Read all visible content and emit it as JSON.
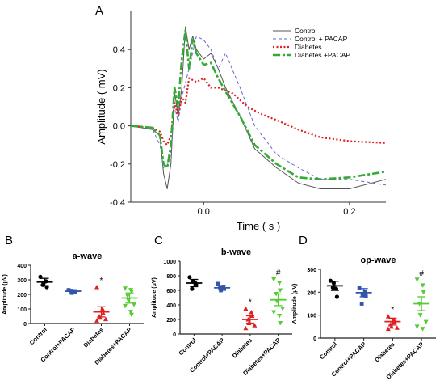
{
  "panel_letters": {
    "a": "A",
    "b": "B",
    "c": "C",
    "d": "D"
  },
  "colors": {
    "control": "#555555",
    "control_pacap": "#6666cc",
    "diabetes": "#e02020",
    "diabetes_pacap": "#33aa33",
    "dot_control": "#000000",
    "dot_control_pacap": "#3355aa",
    "dot_diabetes": "#e02020",
    "dot_diabetes_pacap": "#55cc33"
  },
  "chart_data": [
    {
      "type": "line",
      "xlabel": "Time ( s )",
      "ylabel": "Amplitude ( mV)",
      "xlim": [
        -0.1,
        0.25
      ],
      "ylim": [
        -0.4,
        0.6
      ],
      "xticks": [
        "0.0",
        "0.2"
      ],
      "xtick_values": [
        0.0,
        0.2
      ],
      "yticks": [
        "-0.4",
        "-0.2",
        "0.0",
        "0.2",
        "0.4"
      ],
      "ytick_values": [
        -0.4,
        -0.2,
        0.0,
        0.2,
        0.4
      ],
      "legend_position": "top-right",
      "series": [
        {
          "name": "Control",
          "style": "solid",
          "x": [
            -0.1,
            -0.07,
            -0.06,
            -0.055,
            -0.05,
            -0.045,
            -0.04,
            -0.035,
            -0.03,
            -0.025,
            -0.02,
            -0.015,
            -0.01,
            0.0,
            0.01,
            0.02,
            0.03,
            0.05,
            0.07,
            0.1,
            0.13,
            0.16,
            0.2,
            0.25
          ],
          "y": [
            0.0,
            -0.02,
            -0.05,
            -0.25,
            -0.33,
            -0.2,
            0.18,
            0.05,
            0.2,
            0.52,
            0.4,
            0.47,
            0.4,
            0.35,
            0.38,
            0.3,
            0.2,
            0.05,
            -0.12,
            -0.22,
            -0.3,
            -0.33,
            -0.33,
            -0.28
          ]
        },
        {
          "name": "Control + PACAP",
          "style": "dashed",
          "x": [
            -0.1,
            -0.07,
            -0.06,
            -0.055,
            -0.05,
            -0.045,
            -0.04,
            -0.035,
            -0.03,
            -0.02,
            -0.01,
            0.0,
            0.01,
            0.02,
            0.03,
            0.05,
            0.07,
            0.1,
            0.13,
            0.16,
            0.2,
            0.25
          ],
          "y": [
            0.0,
            -0.02,
            -0.1,
            -0.22,
            -0.2,
            -0.15,
            0.1,
            0.02,
            0.15,
            0.3,
            0.47,
            0.45,
            0.4,
            0.3,
            0.38,
            0.2,
            0.0,
            -0.15,
            -0.22,
            -0.28,
            -0.28,
            -0.31
          ]
        },
        {
          "name": "Diabetes",
          "style": "dotted",
          "x": [
            -0.1,
            -0.07,
            -0.06,
            -0.055,
            -0.05,
            -0.045,
            -0.04,
            -0.035,
            -0.03,
            -0.025,
            -0.02,
            -0.01,
            0.0,
            0.01,
            0.02,
            0.04,
            0.06,
            0.08,
            0.1,
            0.13,
            0.16,
            0.2,
            0.25
          ],
          "y": [
            0.0,
            -0.01,
            -0.03,
            -0.08,
            -0.1,
            -0.05,
            0.12,
            0.05,
            0.15,
            0.12,
            0.25,
            0.23,
            0.25,
            0.2,
            0.2,
            0.17,
            0.1,
            0.06,
            0.03,
            -0.02,
            -0.06,
            -0.08,
            -0.09
          ]
        },
        {
          "name": "Diabetes +PACAP",
          "style": "dashdot",
          "x": [
            -0.1,
            -0.07,
            -0.06,
            -0.055,
            -0.05,
            -0.045,
            -0.04,
            -0.035,
            -0.03,
            -0.025,
            -0.02,
            -0.015,
            -0.01,
            0.0,
            0.01,
            0.02,
            0.03,
            0.05,
            0.07,
            0.1,
            0.13,
            0.16,
            0.2,
            0.25
          ],
          "y": [
            0.0,
            -0.01,
            -0.05,
            -0.2,
            -0.22,
            -0.1,
            0.2,
            0.1,
            0.35,
            0.5,
            0.3,
            0.45,
            0.38,
            0.32,
            0.33,
            0.25,
            0.18,
            0.05,
            -0.1,
            -0.2,
            -0.27,
            -0.28,
            -0.27,
            -0.24
          ]
        }
      ]
    },
    {
      "type": "scatter",
      "title": "a-wave",
      "ylabel": "Amplitude (μV)",
      "categories": [
        "Control",
        "Control+PACAP",
        "Diabetes",
        "Diabetes+PACAP"
      ],
      "ylim": [
        0,
        400
      ],
      "yticks": [
        "0",
        "100",
        "200",
        "300",
        "400"
      ],
      "ytick_values": [
        0,
        100,
        200,
        300,
        400
      ],
      "means": [
        285,
        222,
        80,
        175
      ],
      "sem": [
        25,
        10,
        35,
        35
      ],
      "points": [
        [
          320,
          290,
          250,
          265,
          280
        ],
        [
          230,
          220,
          215,
          225,
          210
        ],
        [
          250,
          100,
          70,
          50,
          40,
          30,
          20
        ],
        [
          240,
          230,
          220,
          190,
          160,
          130,
          120,
          80,
          60
        ]
      ],
      "annotations": [
        "",
        "",
        "*",
        ""
      ]
    },
    {
      "type": "scatter",
      "title": "b-wave",
      "ylabel": "Amplitude (μV)",
      "categories": [
        "Control",
        "Control+PACAP",
        "Diabetes",
        "Diabetes+PACAP"
      ],
      "ylim": [
        0,
        1000
      ],
      "yticks": [
        "0",
        "200",
        "400",
        "600",
        "800",
        "1000"
      ],
      "ytick_values": [
        0,
        200,
        400,
        600,
        800,
        1000
      ],
      "means": [
        700,
        635,
        200,
        470
      ],
      "sem": [
        50,
        30,
        50,
        80
      ],
      "points": [
        [
          780,
          700,
          680,
          620,
          720
        ],
        [
          690,
          650,
          620,
          640,
          600
        ],
        [
          350,
          300,
          250,
          200,
          150,
          120,
          80
        ],
        [
          750,
          700,
          600,
          550,
          450,
          350,
          300,
          250,
          150
        ]
      ],
      "annotations": [
        "",
        "",
        "*",
        "#"
      ]
    },
    {
      "type": "scatter",
      "title": "op-wave",
      "ylabel": "Amplitude (μV)",
      "categories": [
        "Control",
        "Control+PACAP",
        "Diabetes",
        "Diabetes+PACAP"
      ],
      "ylim": [
        0,
        300
      ],
      "yticks": [
        "0",
        "100",
        "200",
        "300"
      ],
      "ytick_values": [
        0,
        100,
        200,
        300
      ],
      "means": [
        228,
        198,
        72,
        150
      ],
      "sem": [
        20,
        18,
        15,
        30
      ],
      "points": [
        [
          250,
          215,
          180,
          220,
          240
        ],
        [
          220,
          200,
          185,
          150,
          190
        ],
        [
          95,
          80,
          70,
          60,
          50,
          45,
          40
        ],
        [
          255,
          230,
          200,
          150,
          100,
          70,
          50,
          40
        ]
      ],
      "annotations": [
        "",
        "",
        "*",
        "#"
      ]
    }
  ]
}
